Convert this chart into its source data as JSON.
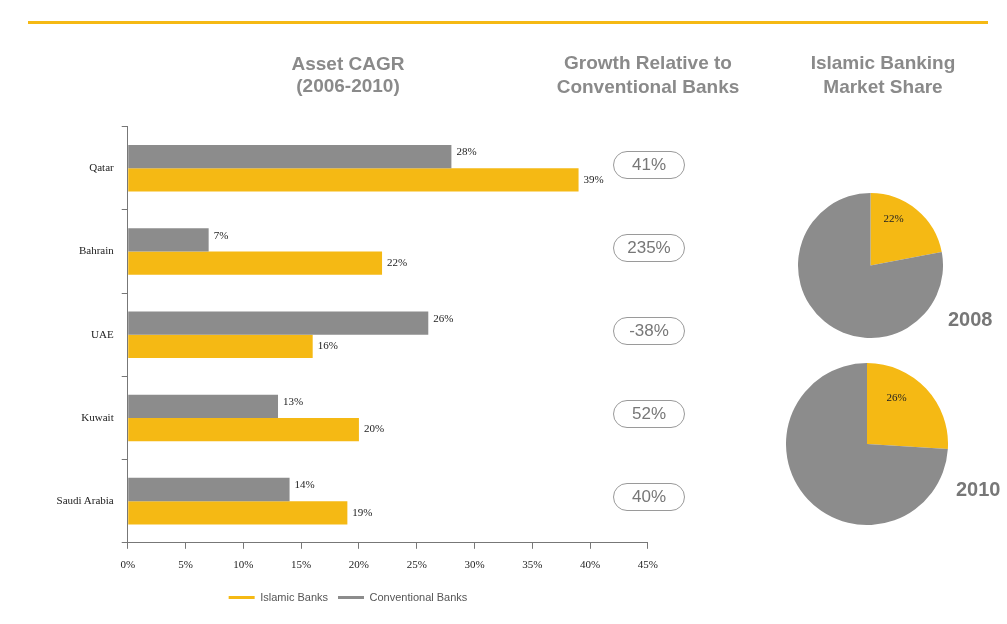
{
  "chart_data": [
    {
      "type": "bar",
      "orientation": "horizontal",
      "title": "Asset CAGR\n(2006-2010)",
      "categories": [
        "Qatar",
        "Bahrain",
        "UAE",
        "Kuwait",
        "Saudi Arabia"
      ],
      "series": [
        {
          "name": "Conventional Banks",
          "color": "#8c8c8c",
          "values": [
            28,
            7,
            26,
            13,
            14
          ],
          "value_labels": [
            "28%",
            "7%",
            "26%",
            "13%",
            "14%"
          ]
        },
        {
          "name": "Islamic Banks",
          "color": "#f5b914",
          "values": [
            39,
            22,
            16,
            20,
            19
          ],
          "value_labels": [
            "39%",
            "22%",
            "16%",
            "20%",
            "19%"
          ]
        }
      ],
      "xlim": [
        0,
        45
      ],
      "xticks": [
        {
          "value": 0,
          "label": "0%"
        },
        {
          "value": 5,
          "label": "5%"
        },
        {
          "value": 10,
          "label": "10%"
        },
        {
          "value": 15,
          "label": "15%"
        },
        {
          "value": 20,
          "label": "20%"
        },
        {
          "value": 25,
          "label": "25%"
        },
        {
          "value": 30,
          "label": "30%"
        },
        {
          "value": 35,
          "label": "35%"
        },
        {
          "value": 40,
          "label": "40%"
        },
        {
          "value": 45,
          "label": "45%"
        }
      ],
      "grid": false,
      "legend": "bottom"
    },
    {
      "type": "other",
      "title": "Growth Relative to\nConventional Banks",
      "annotations": [
        "41%",
        "235%",
        "-38%",
        "52%",
        "40%"
      ]
    },
    {
      "type": "pie",
      "title": "Islamic Banking\nMarket Share",
      "categories": [
        null,
        null
      ],
      "values": [
        22,
        78
      ],
      "colors": [
        "#f5b914",
        "#8c8c8c"
      ],
      "value_labels": [
        "22%",
        null
      ],
      "annotations": [
        "2008"
      ]
    },
    {
      "type": "pie",
      "categories": [
        null,
        null
      ],
      "values": [
        26,
        74
      ],
      "colors": [
        "#f5b914",
        "#8c8c8c"
      ],
      "value_labels": [
        "26%",
        null
      ],
      "annotations": [
        "2010"
      ]
    }
  ]
}
